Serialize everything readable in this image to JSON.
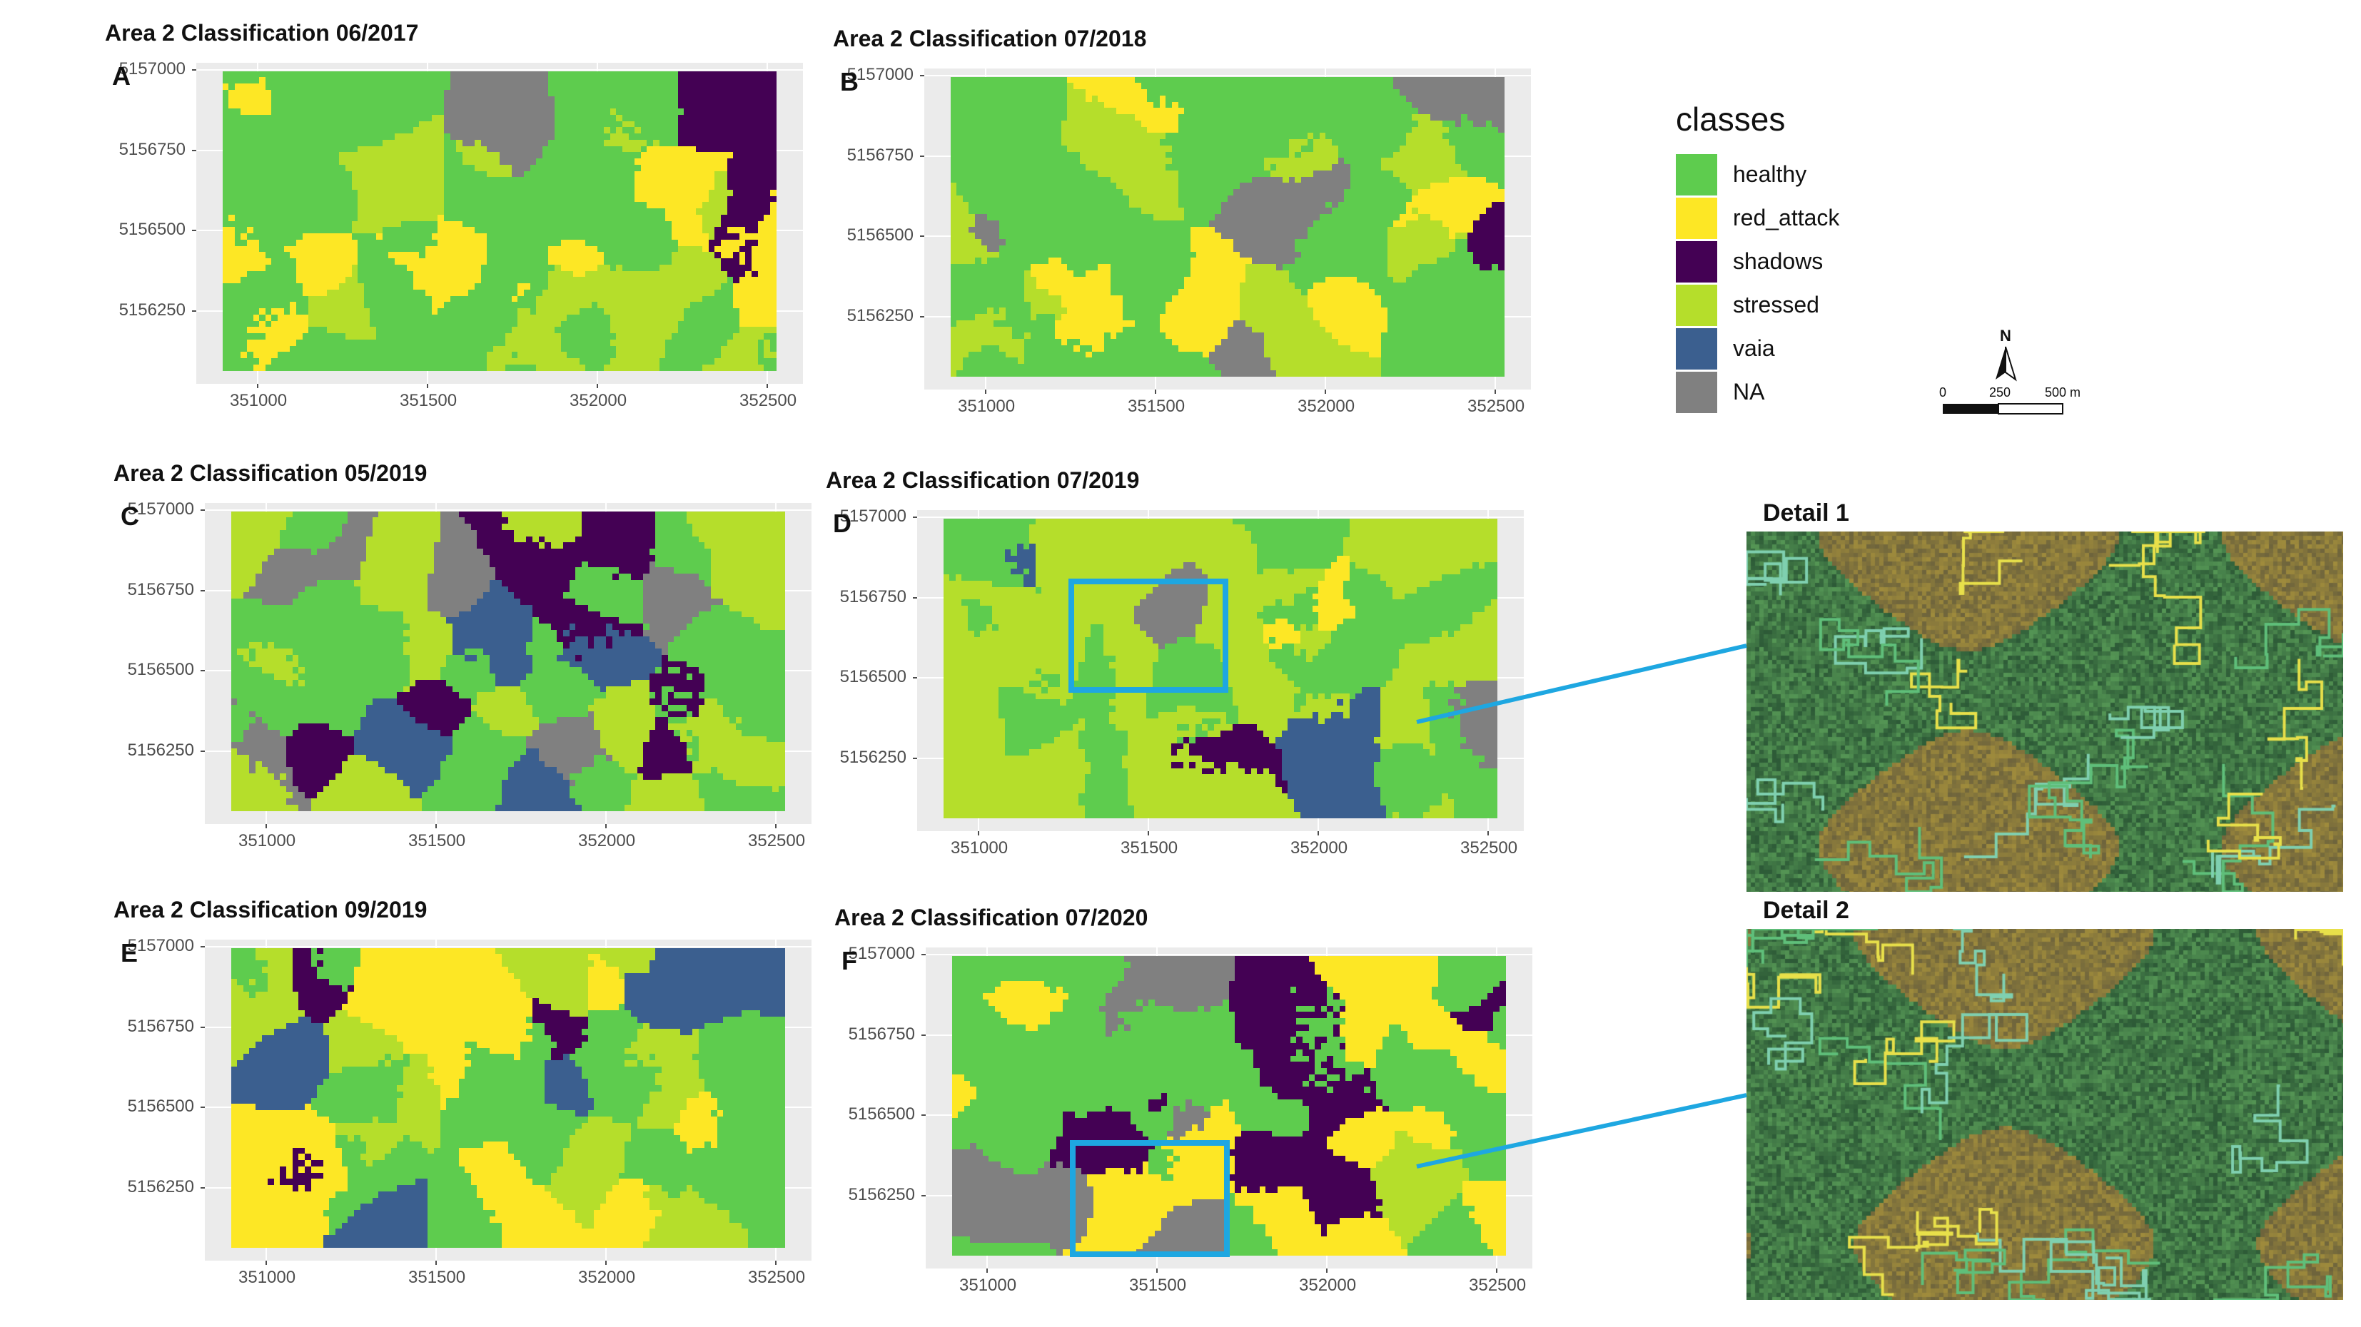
{
  "panels": [
    {
      "id": "A",
      "label": "A",
      "title": "Area 2 Classification 06/2017",
      "y_ticks": [
        "5157000",
        "5156750",
        "5156500",
        "5156250"
      ],
      "x_ticks": [
        "351000",
        "351500",
        "352000",
        "352500"
      ]
    },
    {
      "id": "B",
      "label": "B",
      "title": "Area 2 Classification 07/2018",
      "y_ticks": [
        "5157000",
        "5156750",
        "5156500",
        "5156250"
      ],
      "x_ticks": [
        "351000",
        "351500",
        "352000",
        "352500"
      ]
    },
    {
      "id": "C",
      "label": "C",
      "title": "Area 2 Classification 05/2019",
      "y_ticks": [
        "5157000",
        "5156750",
        "5156500",
        "5156250"
      ],
      "x_ticks": [
        "351000",
        "351500",
        "352000",
        "352500"
      ]
    },
    {
      "id": "D",
      "label": "D",
      "title": "Area 2 Classification 07/2019",
      "y_ticks": [
        "5157000",
        "5156750",
        "5156500",
        "5156250"
      ],
      "x_ticks": [
        "351000",
        "351500",
        "352000",
        "352500"
      ]
    },
    {
      "id": "E",
      "label": "E",
      "title": "Area 2 Classification 09/2019",
      "y_ticks": [
        "5157000",
        "5156750",
        "5156500",
        "5156250"
      ],
      "x_ticks": [
        "351000",
        "351500",
        "352000",
        "352500"
      ]
    },
    {
      "id": "F",
      "label": "F",
      "title": "Area 2 Classification 07/2020",
      "y_ticks": [
        "5157000",
        "5156750",
        "5156500",
        "5156250"
      ],
      "x_ticks": [
        "351000",
        "351500",
        "352000",
        "352500"
      ]
    }
  ],
  "legend": {
    "title": "classes",
    "items": [
      {
        "label": "healthy",
        "color": "#5ecc4e"
      },
      {
        "label": "red_attack",
        "color": "#fde725"
      },
      {
        "label": "shadows",
        "color": "#440154"
      },
      {
        "label": "stressed",
        "color": "#b5de2b"
      },
      {
        "label": "vaia",
        "color": "#3b5f8f"
      },
      {
        "label": "NA",
        "color": "#808080"
      }
    ]
  },
  "scale_bar": {
    "north": "N",
    "labels": [
      "0",
      "250",
      "500 m"
    ]
  },
  "details": [
    {
      "title": "Detail 1"
    },
    {
      "title": "Detail 2"
    }
  ],
  "colors": {
    "highlight": "#1ea7e1",
    "healthy": "#5ecc4e",
    "red_attack": "#fde725",
    "shadows": "#440154",
    "stressed": "#b5de2b",
    "vaia": "#3b5f8f",
    "na": "#808080"
  }
}
